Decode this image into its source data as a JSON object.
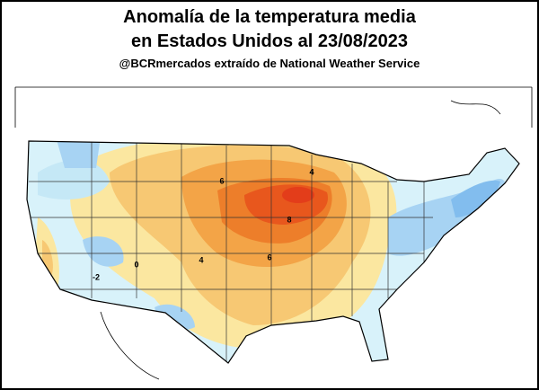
{
  "header": {
    "title_lines": [
      "Anomalía de la temperatura media",
      "en Estados Unidos al 23/08/2023"
    ],
    "credit": "@BCRmercados extraído de National Weather Service"
  },
  "map": {
    "contour_labels": [
      "6",
      "4",
      "8",
      "0",
      "-2",
      "4",
      "6"
    ]
  }
}
